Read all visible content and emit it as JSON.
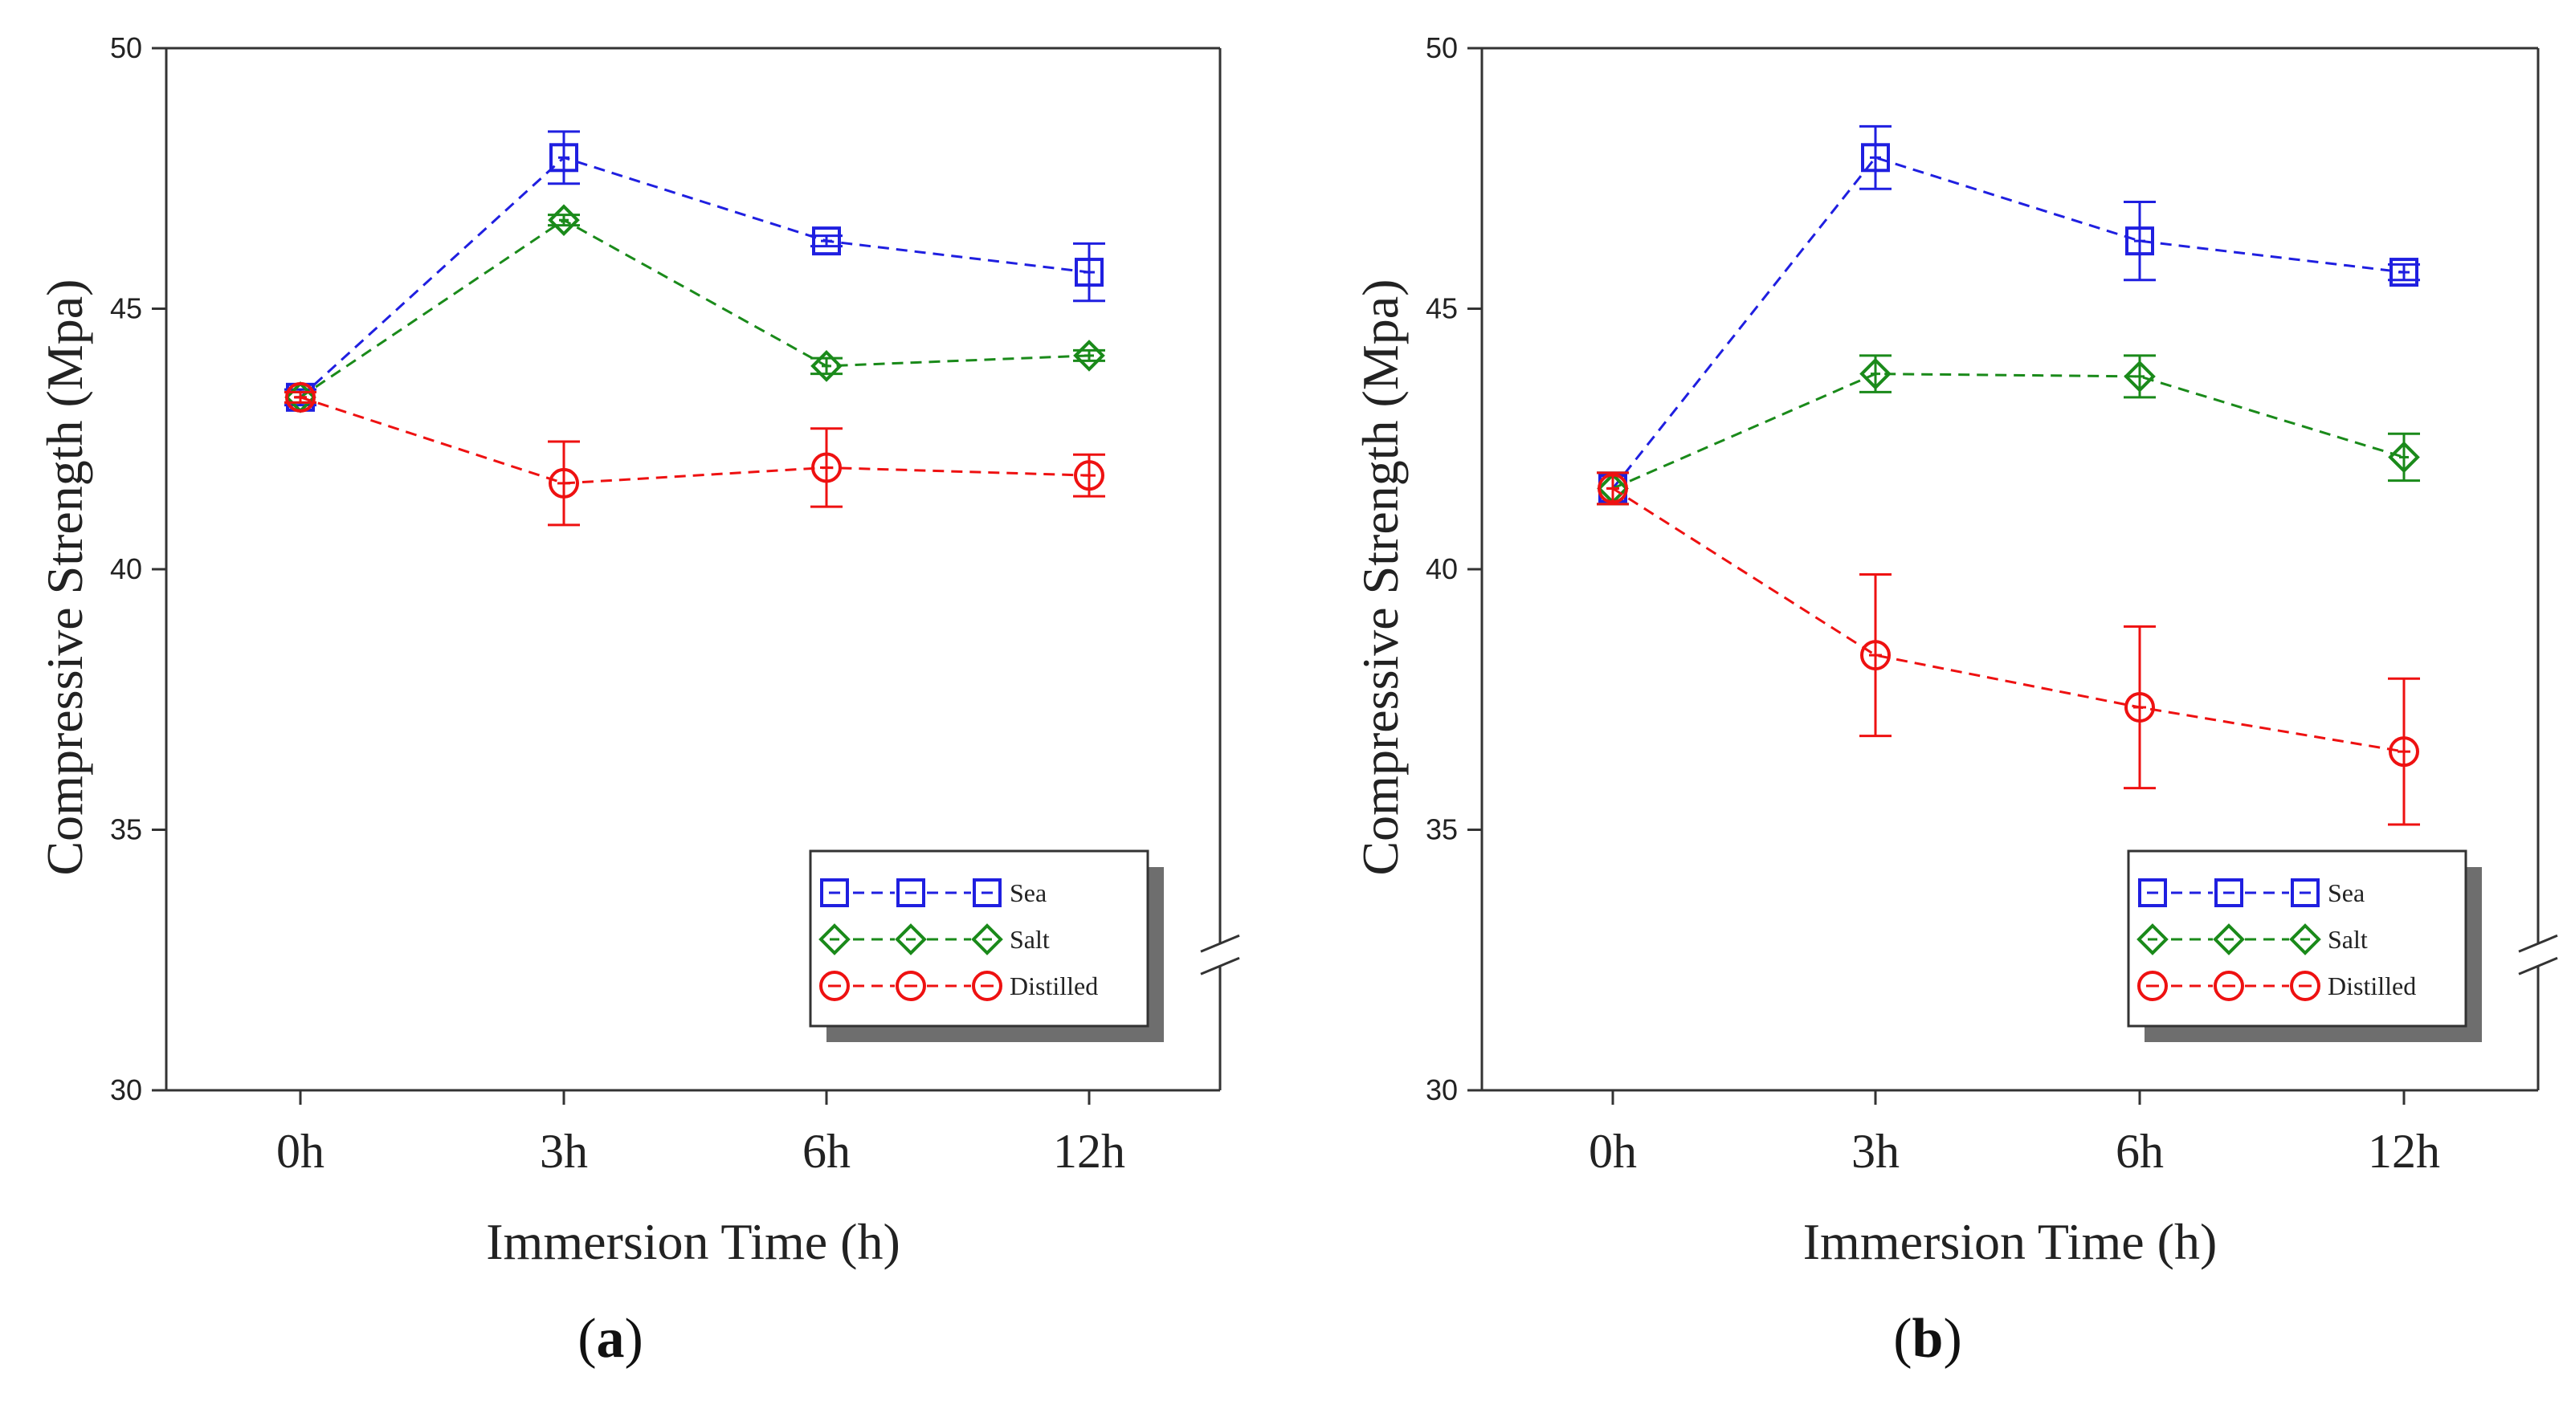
{
  "chart_data": [
    {
      "type": "line",
      "panel_label": "a",
      "title": "",
      "xlabel": "Immersion Time (h)",
      "ylabel": "Compressive Strength (Mpa)",
      "categories": [
        "0h",
        "3h",
        "6h",
        "12h"
      ],
      "ylim": [
        30,
        50
      ],
      "yticks": [
        30,
        35,
        40,
        45,
        50
      ],
      "axis_break": true,
      "grid": false,
      "legend_position": "bottom-right",
      "series": [
        {
          "name": "Sea",
          "color": "#1f1fe0",
          "marker": "square",
          "values": [
            43.3,
            47.9,
            46.3,
            45.7
          ],
          "errors": [
            0.15,
            0.5,
            0.1,
            0.55
          ]
        },
        {
          "name": "Salt",
          "color": "#1a8a1a",
          "marker": "diamond",
          "values": [
            43.3,
            46.7,
            43.9,
            44.1
          ],
          "errors": [
            0.1,
            0.1,
            0.15,
            0.1
          ]
        },
        {
          "name": "Distilled",
          "color": "#ee1111",
          "marker": "circle",
          "values": [
            43.3,
            41.65,
            41.95,
            41.8
          ],
          "errors": [
            0.1,
            0.8,
            0.75,
            0.4
          ]
        }
      ]
    },
    {
      "type": "line",
      "panel_label": "b",
      "title": "",
      "xlabel": "Immersion Time (h)",
      "ylabel": "Compressive Strength (Mpa)",
      "categories": [
        "0h",
        "3h",
        "6h",
        "12h"
      ],
      "ylim": [
        30,
        50
      ],
      "yticks": [
        30,
        35,
        40,
        45,
        50
      ],
      "axis_break": true,
      "grid": false,
      "legend_position": "bottom-right",
      "series": [
        {
          "name": "Sea",
          "color": "#1f1fe0",
          "marker": "square",
          "values": [
            41.55,
            47.9,
            46.3,
            45.7
          ],
          "errors": [
            0.3,
            0.6,
            0.75,
            0.15
          ]
        },
        {
          "name": "Salt",
          "color": "#1a8a1a",
          "marker": "diamond",
          "values": [
            41.55,
            43.75,
            43.7,
            42.15
          ],
          "errors": [
            0.3,
            0.35,
            0.4,
            0.45
          ]
        },
        {
          "name": "Distilled",
          "color": "#ee1111",
          "marker": "circle",
          "values": [
            41.55,
            38.35,
            37.35,
            36.5
          ],
          "errors": [
            0.3,
            1.55,
            1.55,
            1.4
          ]
        }
      ]
    }
  ]
}
